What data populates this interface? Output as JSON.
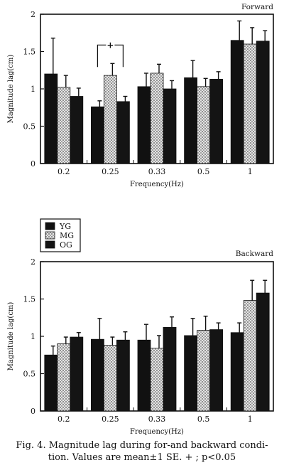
{
  "colors": {
    "YG": "#111111",
    "MG": "#cfcfcf",
    "OG": "#141414",
    "axis": "#111111",
    "background": "#ffffff"
  },
  "legend": {
    "items": [
      {
        "key": "YG",
        "label": "YG"
      },
      {
        "key": "MG",
        "label": "MG"
      },
      {
        "key": "OG",
        "label": "OG"
      }
    ]
  },
  "chart_data": [
    {
      "type": "bar",
      "title": "Forward",
      "xlabel": "Frequency(Hz)",
      "ylabel": "Magnitude lag(cm)",
      "categories": [
        "0.2",
        "0.25",
        "0.33",
        "0.5",
        "1"
      ],
      "ylim": [
        0,
        2
      ],
      "yticks": [
        "0",
        "0.5",
        "1",
        "1.5",
        "2"
      ],
      "series": [
        {
          "name": "YG",
          "values": [
            1.2,
            0.76,
            1.03,
            1.15,
            1.65
          ],
          "se": [
            0.48,
            0.08,
            0.18,
            0.23,
            0.26
          ]
        },
        {
          "name": "MG",
          "values": [
            1.02,
            1.18,
            1.21,
            1.03,
            1.6
          ],
          "se": [
            0.16,
            0.16,
            0.12,
            0.11,
            0.22
          ]
        },
        {
          "name": "OG",
          "values": [
            0.9,
            0.83,
            1.0,
            1.13,
            1.64
          ],
          "se": [
            0.11,
            0.07,
            0.11,
            0.1,
            0.14
          ]
        }
      ],
      "annotations": [
        {
          "text": "+",
          "category": "0.25",
          "from": "YG",
          "to": "OG"
        }
      ]
    },
    {
      "type": "bar",
      "title": "Backward",
      "xlabel": "Frequency(Hz)",
      "ylabel": "Magnitude lag(cm)",
      "categories": [
        "0.2",
        "0.25",
        "0.33",
        "0.5",
        "1"
      ],
      "ylim": [
        0,
        2
      ],
      "yticks": [
        "0",
        "0.5",
        "1",
        "1.5",
        "2"
      ],
      "series": [
        {
          "name": "YG",
          "values": [
            0.75,
            0.96,
            0.95,
            1.01,
            1.05
          ],
          "se": [
            0.12,
            0.28,
            0.21,
            0.23,
            0.13
          ]
        },
        {
          "name": "MG",
          "values": [
            0.9,
            0.88,
            0.84,
            1.08,
            1.48
          ],
          "se": [
            0.09,
            0.11,
            0.17,
            0.19,
            0.27
          ]
        },
        {
          "name": "OG",
          "values": [
            0.99,
            0.95,
            1.12,
            1.09,
            1.58
          ],
          "se": [
            0.06,
            0.11,
            0.14,
            0.09,
            0.17
          ]
        }
      ]
    }
  ],
  "caption": {
    "line1": "Fig. 4. Magnitude lag during for-and backward condi-",
    "line2": "tion. Values are mean±1 SE. + ; p<0.05"
  }
}
